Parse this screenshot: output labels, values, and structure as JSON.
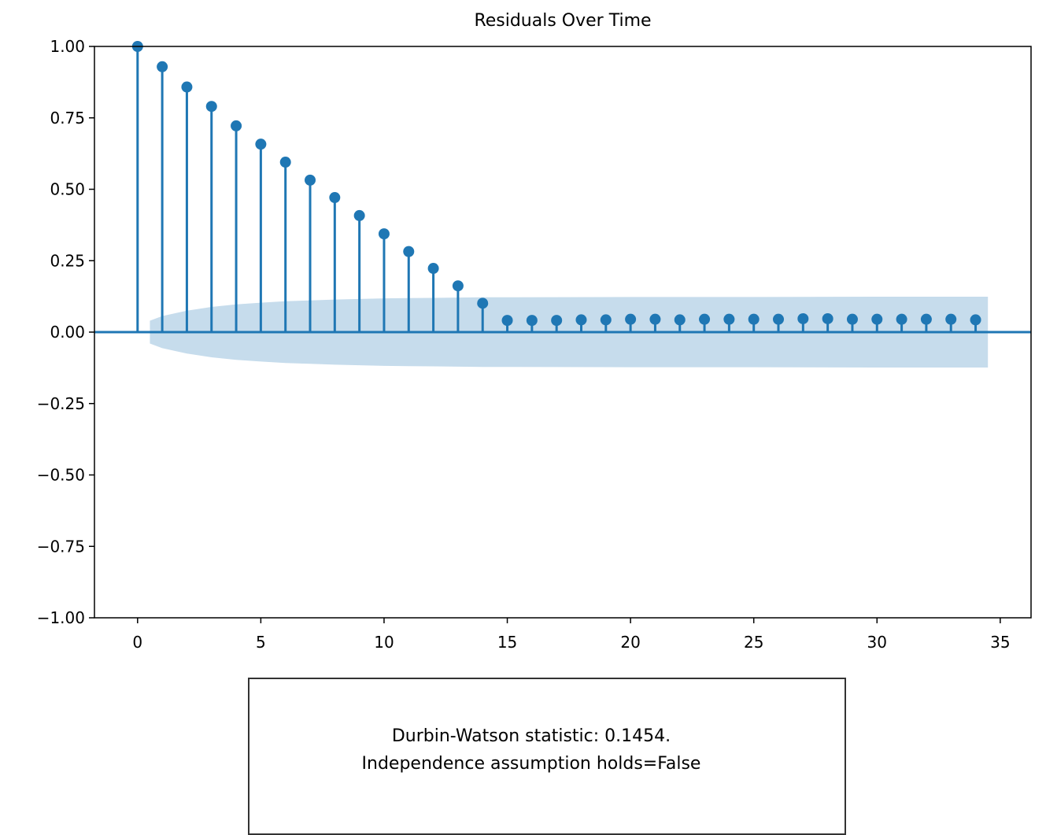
{
  "chart_data": {
    "type": "stem",
    "title": "Residuals Over Time",
    "xlabel": "",
    "ylabel": "",
    "xlim": [
      -1.75,
      36.25
    ],
    "ylim": [
      -1.0,
      1.0
    ],
    "xticks": [
      0,
      5,
      10,
      15,
      20,
      25,
      30,
      35
    ],
    "yticks": [
      -1.0,
      -0.75,
      -0.5,
      -0.25,
      0.0,
      0.25,
      0.5,
      0.75,
      1.0
    ],
    "ytick_labels": [
      "−1.00",
      "−0.75",
      "−0.50",
      "−0.25",
      "0.00",
      "0.25",
      "0.50",
      "0.75",
      "1.00"
    ],
    "x": [
      0,
      1,
      2,
      3,
      4,
      5,
      6,
      7,
      8,
      9,
      10,
      11,
      12,
      13,
      14,
      15,
      16,
      17,
      18,
      19,
      20,
      21,
      22,
      23,
      24,
      25,
      26,
      27,
      28,
      29,
      30,
      31,
      32,
      33,
      34
    ],
    "values": [
      1.0,
      0.929,
      0.858,
      0.79,
      0.722,
      0.658,
      0.595,
      0.532,
      0.471,
      0.408,
      0.344,
      0.282,
      0.223,
      0.162,
      0.101,
      0.041,
      0.041,
      0.041,
      0.043,
      0.043,
      0.045,
      0.045,
      0.043,
      0.045,
      0.045,
      0.045,
      0.045,
      0.047,
      0.047,
      0.045,
      0.045,
      0.045,
      0.045,
      0.045,
      0.043
    ],
    "confidence_band": {
      "x": [
        0.5,
        1,
        2,
        3,
        4,
        5,
        6,
        7,
        8,
        9,
        10,
        11,
        12,
        13,
        14,
        15,
        20,
        25,
        30,
        34.5
      ],
      "upper": [
        0.04,
        0.056,
        0.075,
        0.088,
        0.097,
        0.103,
        0.108,
        0.111,
        0.114,
        0.116,
        0.118,
        0.119,
        0.12,
        0.121,
        0.122,
        0.122,
        0.123,
        0.123,
        0.124,
        0.124
      ]
    },
    "colors": {
      "stem": "#1f77b4",
      "band": "#c6dcec",
      "axis": "#000000"
    },
    "grid": false
  },
  "note": {
    "line1": "Durbin-Watson statistic: 0.1454.",
    "line2": "Independence assumption holds=False"
  }
}
